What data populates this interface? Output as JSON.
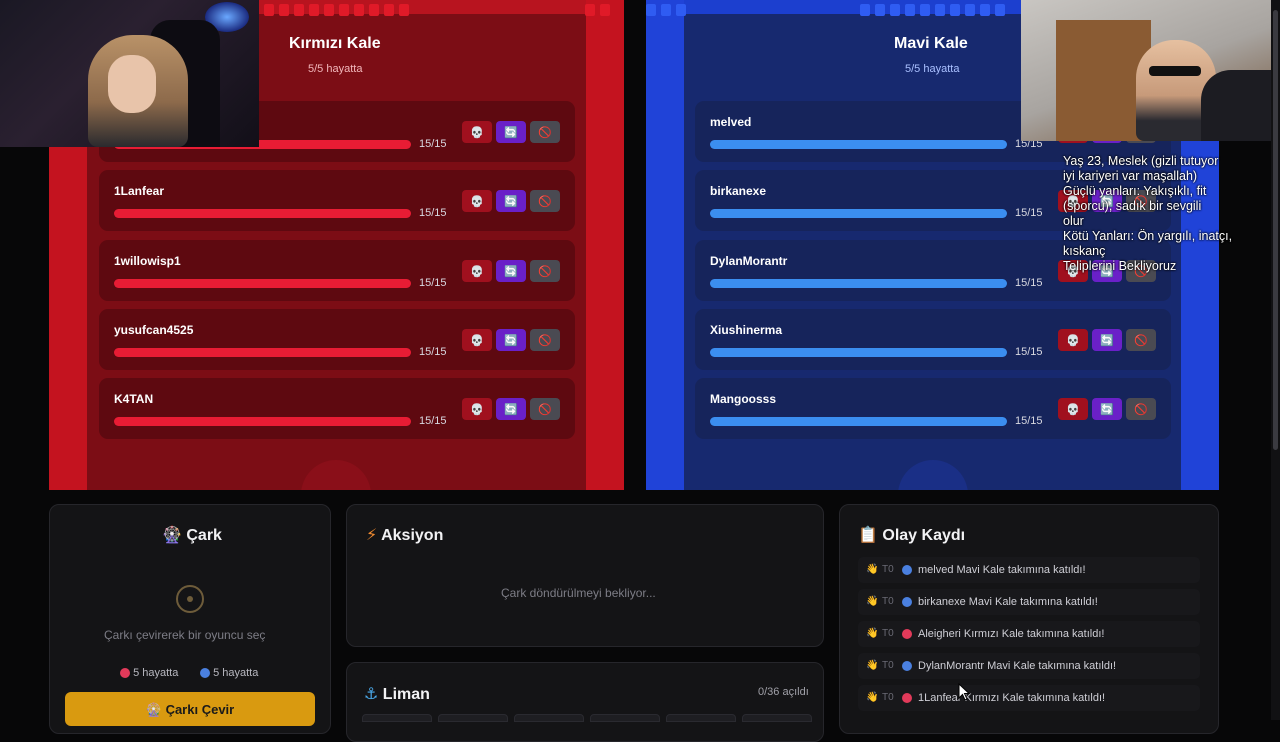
{
  "red_castle": {
    "title": "Kırmızı Kale",
    "subtitle": "5/5 hayatta",
    "players": [
      {
        "name": "",
        "hp": "15/15"
      },
      {
        "name": "1Lanfear",
        "hp": "15/15"
      },
      {
        "name": "1willowisp1",
        "hp": "15/15"
      },
      {
        "name": "yusufcan4525",
        "hp": "15/15"
      },
      {
        "name": "K4TAN",
        "hp": "15/15"
      }
    ]
  },
  "blue_castle": {
    "title": "Mavi Kale",
    "subtitle": "5/5 hayatta",
    "players": [
      {
        "name": "melved",
        "hp": "15/15"
      },
      {
        "name": "birkanexe",
        "hp": "15/15"
      },
      {
        "name": "DylanMorantr",
        "hp": "15/15"
      },
      {
        "name": "Xiushinerma",
        "hp": "15/15"
      },
      {
        "name": "Mangoosss",
        "hp": "15/15"
      }
    ]
  },
  "actions": {
    "skull": "💀",
    "swap": "🔄",
    "ban": "🚫"
  },
  "overlay_lines": [
    "Yaş 23, Meslek (gizli tutuyor",
    "iyi kariyeri var maşallah)",
    "Güçlü yanları: Yakışıklı, fit",
    "(sporcu), sadık bir sevgili",
    "olur",
    "Kötü Yanları: Ön yargılı, inatçı,",
    "kıskanç",
    "Teliplerini Bekliyoruz"
  ],
  "wheel_panel": {
    "icon": "🎡",
    "title": "Çark",
    "hint": "Çarkı çevirerek bir oyuncu seç",
    "red_alive": "5 hayatta",
    "blue_alive": "5 hayatta",
    "spin_label": "🎡 Çarkı Çevir"
  },
  "action_panel": {
    "icon": "⚡",
    "title": "Aksiyon",
    "waiting": "Çark döndürülmeyi bekliyor..."
  },
  "harbor_panel": {
    "icon": "⚓",
    "title": "Liman",
    "count": "0/36 açıldı"
  },
  "log_panel": {
    "icon": "📋",
    "title": "Olay Kaydı",
    "entries": [
      {
        "hand": "👋",
        "t": "T0",
        "team": "b",
        "text": "melved Mavi Kale takımına katıldı!"
      },
      {
        "hand": "👋",
        "t": "T0",
        "team": "b",
        "text": "birkanexe Mavi Kale takımına katıldı!"
      },
      {
        "hand": "👋",
        "t": "T0",
        "team": "r",
        "text": "Aleigheri Kırmızı Kale takımına katıldı!"
      },
      {
        "hand": "👋",
        "t": "T0",
        "team": "b",
        "text": "DylanMorantr Mavi Kale takımına katıldı!"
      },
      {
        "hand": "👋",
        "t": "T0",
        "team": "r",
        "text": "1Lanfear Kırmızı Kale takımına katıldı!"
      }
    ]
  },
  "colors": {
    "red": "#b8141f",
    "blue": "#1c3fcf",
    "accent": "#d99a10"
  }
}
